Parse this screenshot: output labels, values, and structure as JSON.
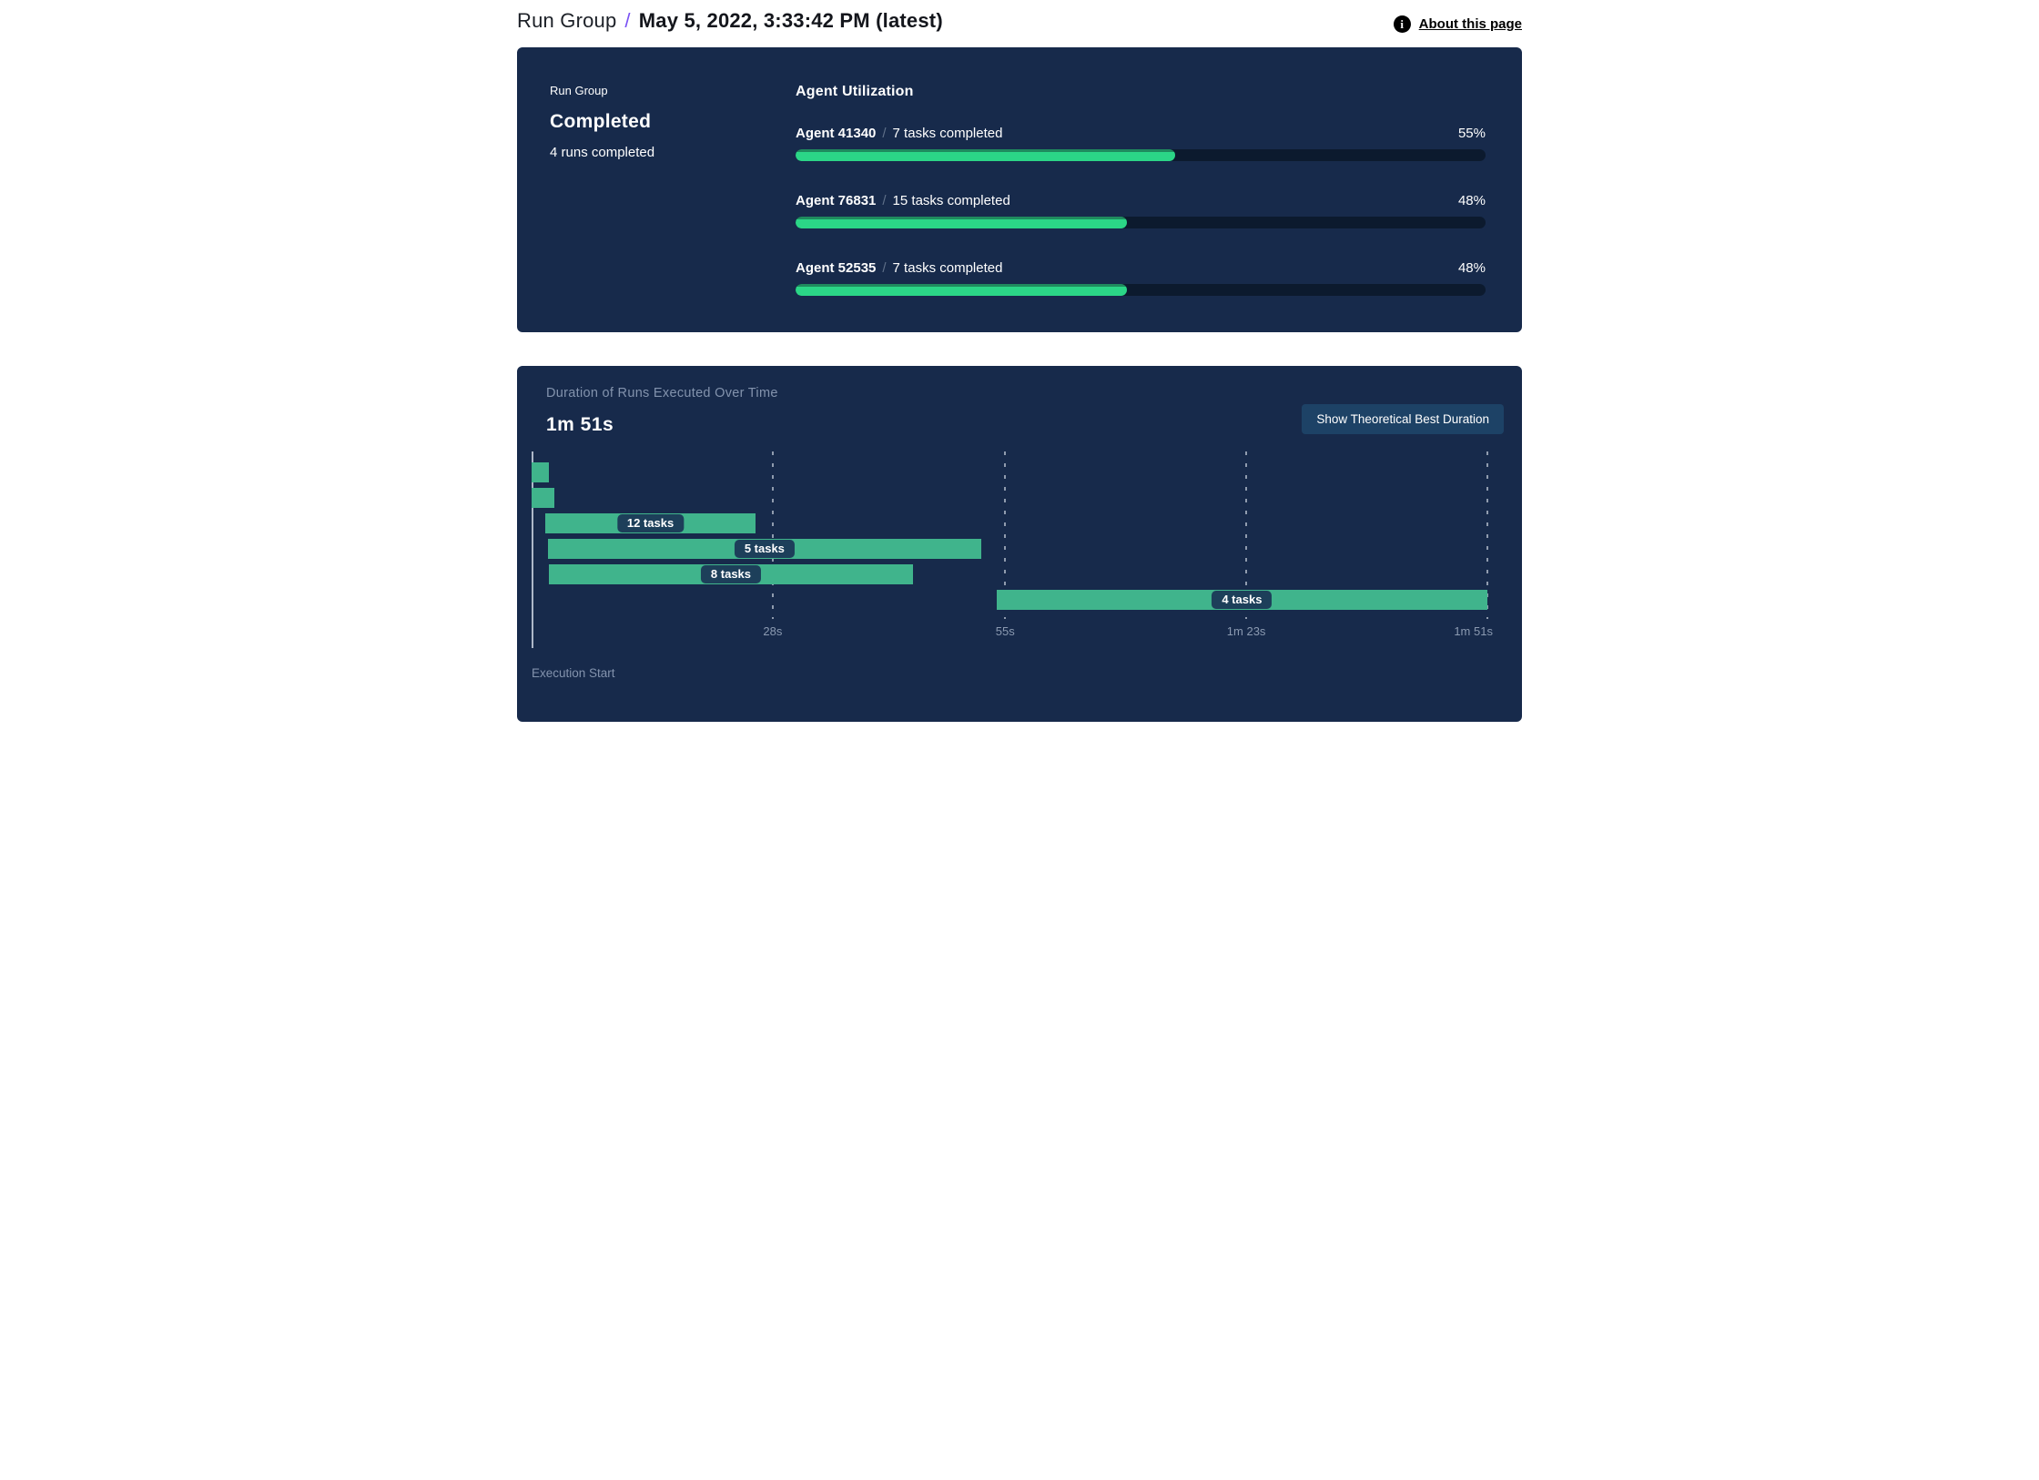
{
  "header": {
    "breadcrumb_root": "Run Group",
    "separator": "/",
    "title": "May 5, 2022, 3:33:42 PM (latest)",
    "about_link": "About this page",
    "info_icon_glyph": "i"
  },
  "status_card": {
    "label": "Run Group",
    "status": "Completed",
    "runs_completed": "4 runs completed"
  },
  "utilization": {
    "heading": "Agent Utilization",
    "separator": "/"
  },
  "duration_card": {
    "title": "Duration of Runs Executed Over Time",
    "total_duration": "1m 51s",
    "button_label": "Show Theoretical Best Duration",
    "execution_start_label": "Execution Start"
  },
  "colors": {
    "card_bg": "#172a4b",
    "progress_track": "#0c1a2e",
    "progress_fill": "#2bd687",
    "progress_fill_top_edge": "#1f8b5e",
    "gantt_bar": "#40b48c",
    "badge_bg": "#1d3f5a",
    "button_bg": "#1d4266",
    "accent_purple": "#7a52f4",
    "muted_text": "#8393ad"
  },
  "chart_data": [
    {
      "id": "agent_utilization",
      "type": "bar",
      "orientation": "horizontal",
      "title": "Agent Utilization",
      "categories": [
        "Agent 41340",
        "Agent 76831",
        "Agent 52535"
      ],
      "annotations": [
        "7 tasks completed",
        "15 tasks completed",
        "7 tasks completed"
      ],
      "series": [
        {
          "name": "Utilization",
          "values": [
            55,
            48,
            48
          ]
        }
      ],
      "value_labels": [
        "55%",
        "48%",
        "48%"
      ],
      "xlim": [
        0,
        100
      ],
      "legend": "none",
      "grid": "off"
    },
    {
      "id": "run_duration_timeline",
      "type": "bar",
      "subtype": "gantt",
      "title": "Duration of Runs Executed Over Time",
      "total_label": "1m 51s",
      "rows": [
        {
          "start_s": 0,
          "end_s": 2.0,
          "label": ""
        },
        {
          "start_s": 0,
          "end_s": 2.6,
          "label": ""
        },
        {
          "start_s": 1.6,
          "end_s": 26.0,
          "label": "12 tasks"
        },
        {
          "start_s": 1.9,
          "end_s": 52.2,
          "label": "5 tasks"
        },
        {
          "start_s": 2.0,
          "end_s": 44.3,
          "label": "8 tasks"
        },
        {
          "start_s": 54.0,
          "end_s": 111.0,
          "label": "4 tasks"
        }
      ],
      "xlim_s": [
        0,
        111
      ],
      "x_ticks": [
        {
          "s": 28,
          "label": "28s"
        },
        {
          "s": 55,
          "label": "55s"
        },
        {
          "s": 83,
          "label": "1m 23s"
        },
        {
          "s": 111,
          "label": "1m 51s"
        }
      ],
      "xlabel": "Execution Start",
      "grid": "dashed-vertical",
      "legend": "none"
    }
  ]
}
